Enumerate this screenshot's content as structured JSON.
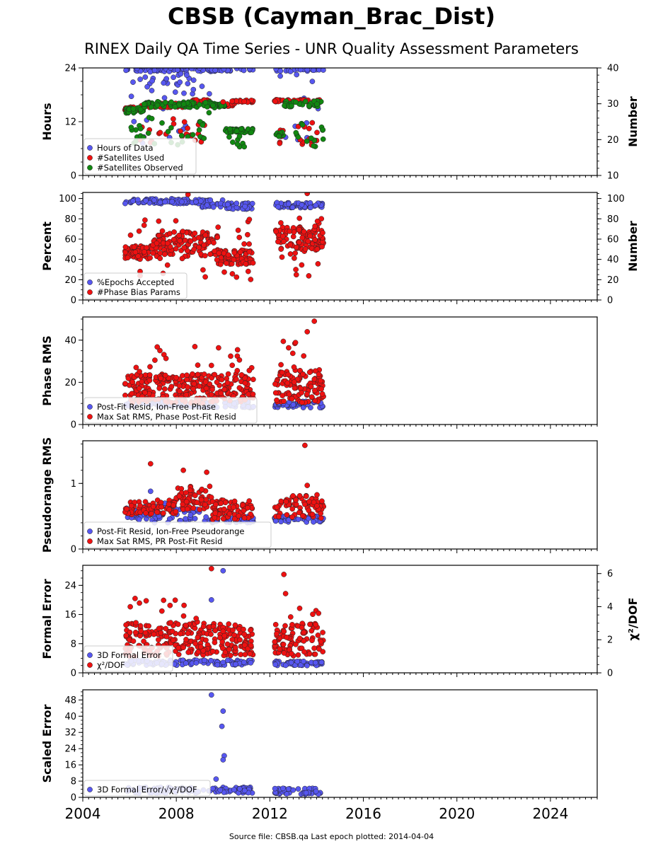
{
  "title": "CBSB (Cayman_Brac_Dist)",
  "subtitle": "RINEX Daily QA Time Series - UNR Quality Assessment Parameters",
  "footer": "Source file: CBSB.qa Last epoch plotted: 2014-04-04",
  "colors": {
    "blue": "#5757f0",
    "red": "#ee1111",
    "green": "#118811",
    "edge": "#222222"
  },
  "chart_data": [
    {
      "type": "scatter",
      "ylabel": "Hours",
      "y2label": "Number",
      "xlim": [
        2004,
        2026
      ],
      "ylim": [
        0,
        24
      ],
      "y2lim": [
        10,
        40
      ],
      "yticks": [
        0,
        12,
        24
      ],
      "y2ticks": [
        10,
        20,
        30,
        40
      ],
      "legend_position": "lower-left",
      "series": [
        {
          "name": "Hours of Data",
          "color": "blue",
          "axis": "left",
          "segments": [
            {
              "x0": 2005.8,
              "x1": 2011.3,
              "base": 23.6,
              "spread": 0.4,
              "n": 90
            },
            {
              "x0": 2006.0,
              "x1": 2009.5,
              "base": 21.5,
              "spread": 3.5,
              "n": 28
            },
            {
              "x0": 2006.0,
              "x1": 2009.0,
              "base": 15.0,
              "spread": 8.5,
              "n": 22
            },
            {
              "x0": 2012.2,
              "x1": 2014.3,
              "base": 23.6,
              "spread": 0.4,
              "n": 30
            },
            {
              "x0": 2012.4,
              "x1": 2014.2,
              "base": 16.0,
              "spread": 9.0,
              "n": 12
            }
          ]
        },
        {
          "name": "#Satellites Used",
          "color": "red",
          "axis": "right",
          "segments": [
            {
              "x0": 2005.8,
              "x1": 2006.5,
              "base": 28.6,
              "spread": 0.5,
              "n": 25
            },
            {
              "x0": 2006.5,
              "x1": 2008.6,
              "base": 29.6,
              "spread": 0.6,
              "n": 50
            },
            {
              "x0": 2008.6,
              "x1": 2009.5,
              "base": 30.7,
              "spread": 0.5,
              "n": 20
            },
            {
              "x0": 2009.5,
              "x1": 2010.5,
              "base": 29.6,
              "spread": 0.5,
              "n": 20
            },
            {
              "x0": 2010.3,
              "x1": 2011.3,
              "base": 30.7,
              "spread": 0.3,
              "n": 22
            },
            {
              "x0": 2006.2,
              "x1": 2009.3,
              "base": 22.5,
              "spread": 3.5,
              "n": 25
            },
            {
              "x0": 2012.2,
              "x1": 2014.3,
              "base": 30.8,
              "spread": 0.4,
              "n": 35
            },
            {
              "x0": 2012.4,
              "x1": 2014.3,
              "base": 22.0,
              "spread": 3.5,
              "n": 18
            }
          ]
        },
        {
          "name": "#Satellites Observed",
          "color": "green",
          "axis": "right",
          "segments": [
            {
              "x0": 2005.8,
              "x1": 2006.6,
              "base": 28.2,
              "spread": 0.8,
              "n": 30
            },
            {
              "x0": 2006.6,
              "x1": 2009.5,
              "base": 29.8,
              "spread": 0.8,
              "n": 70
            },
            {
              "x0": 2009.5,
              "x1": 2010.1,
              "base": 29.5,
              "spread": 0.6,
              "n": 20
            },
            {
              "x0": 2010.1,
              "x1": 2011.3,
              "base": 22.5,
              "spread": 0.6,
              "n": 45
            },
            {
              "x0": 2006.0,
              "x1": 2009.3,
              "base": 22.5,
              "spread": 4.0,
              "n": 30
            },
            {
              "x0": 2010.2,
              "x1": 2011.0,
              "base": 19.5,
              "spread": 1.5,
              "n": 8
            },
            {
              "x0": 2012.2,
              "x1": 2012.6,
              "base": 21.5,
              "spread": 0.6,
              "n": 10
            },
            {
              "x0": 2012.6,
              "x1": 2014.3,
              "base": 30.0,
              "spread": 0.8,
              "n": 40
            },
            {
              "x0": 2013.0,
              "x1": 2014.3,
              "base": 21.0,
              "spread": 3.5,
              "n": 15
            }
          ]
        }
      ]
    },
    {
      "type": "scatter",
      "ylabel": "Percent",
      "y2label": "Number",
      "xlim": [
        2004,
        2026
      ],
      "ylim": [
        0,
        106
      ],
      "y2lim": [
        0,
        106
      ],
      "yticks": [
        0,
        20,
        40,
        60,
        80,
        100
      ],
      "y2ticks": [
        0,
        20,
        40,
        60,
        80,
        100
      ],
      "legend_position": "lower-left",
      "series": [
        {
          "name": "%Epochs Accepted",
          "color": "blue",
          "axis": "left",
          "segments": [
            {
              "x0": 2005.8,
              "x1": 2009.0,
              "base": 97.5,
              "spread": 2.5,
              "n": 90
            },
            {
              "x0": 2009.0,
              "x1": 2010.0,
              "base": 95.5,
              "spread": 4.0,
              "n": 30
            },
            {
              "x0": 2010.0,
              "x1": 2011.3,
              "base": 92.5,
              "spread": 3.0,
              "n": 40
            },
            {
              "x0": 2012.2,
              "x1": 2014.3,
              "base": 93.5,
              "spread": 2.5,
              "n": 60
            }
          ]
        },
        {
          "name": "#Phase Bias Params",
          "color": "red",
          "axis": "right",
          "segments": [
            {
              "x0": 2005.8,
              "x1": 2007.0,
              "base": 47.0,
              "spread": 7.0,
              "n": 60
            },
            {
              "x0": 2007.0,
              "x1": 2009.8,
              "base": 55.0,
              "spread": 12.0,
              "n": 120
            },
            {
              "x0": 2009.8,
              "x1": 2011.3,
              "base": 42.0,
              "spread": 7.0,
              "n": 70
            },
            {
              "x0": 2006.0,
              "x1": 2011.3,
              "base": 50.0,
              "spread": 30.0,
              "n": 40
            },
            {
              "x0": 2012.2,
              "x1": 2014.3,
              "base": 60.0,
              "spread": 12.0,
              "n": 90
            },
            {
              "x0": 2012.4,
              "x1": 2014.3,
              "base": 50.0,
              "spread": 32.0,
              "n": 25
            }
          ]
        }
      ]
    },
    {
      "type": "scatter",
      "ylabel": "Phase RMS",
      "xlim": [
        2004,
        2026
      ],
      "ylim": [
        0,
        51
      ],
      "yticks": [
        0,
        20,
        40
      ],
      "legend_position": "lower-left",
      "series": [
        {
          "name": "Post-Fit Resid, Ion-Free Phase",
          "color": "blue",
          "axis": "left",
          "segments": [
            {
              "x0": 2005.8,
              "x1": 2011.3,
              "base": 9.5,
              "spread": 1.5,
              "n": 120
            },
            {
              "x0": 2012.2,
              "x1": 2014.3,
              "base": 9.5,
              "spread": 1.5,
              "n": 50
            }
          ]
        },
        {
          "name": "Max Sat RMS, Phase Post-Fit Resid",
          "color": "red",
          "axis": "left",
          "segments": [
            {
              "x0": 2005.8,
              "x1": 2011.3,
              "base": 17.0,
              "spread": 7.0,
              "n": 260
            },
            {
              "x0": 2006.0,
              "x1": 2011.3,
              "base": 25.0,
              "spread": 12.0,
              "n": 30
            },
            {
              "x0": 2012.2,
              "x1": 2014.3,
              "base": 18.0,
              "spread": 8.0,
              "n": 100
            },
            {
              "x0": 2012.4,
              "x1": 2014.3,
              "base": 30.0,
              "spread": 10.0,
              "n": 12
            }
          ]
        }
      ]
    },
    {
      "type": "scatter",
      "ylabel": "Pseudorange RMS",
      "xlim": [
        2004,
        2026
      ],
      "ylim": [
        0,
        1.65
      ],
      "yticks": [
        0,
        1
      ],
      "legend_position": "lower-left",
      "series": [
        {
          "name": "Post-Fit Resid, Ion-Free Pseudorange",
          "color": "blue",
          "axis": "left",
          "segments": [
            {
              "x0": 2005.8,
              "x1": 2006.8,
              "base": 0.55,
              "spread": 0.1,
              "n": 25
            },
            {
              "x0": 2006.8,
              "x1": 2009.5,
              "base": 0.55,
              "spread": 0.15,
              "n": 60
            },
            {
              "x0": 2009.5,
              "x1": 2011.3,
              "base": 0.45,
              "spread": 0.05,
              "n": 45
            },
            {
              "x0": 2012.2,
              "x1": 2014.3,
              "base": 0.46,
              "spread": 0.05,
              "n": 50
            }
          ]
        },
        {
          "name": "Max Sat RMS, PR Post-Fit Resid",
          "color": "red",
          "axis": "left",
          "segments": [
            {
              "x0": 2005.8,
              "x1": 2007.0,
              "base": 0.62,
              "spread": 0.1,
              "n": 40
            },
            {
              "x0": 2007.0,
              "x1": 2008.0,
              "base": 0.65,
              "spread": 0.12,
              "n": 35
            },
            {
              "x0": 2008.0,
              "x1": 2009.5,
              "base": 0.78,
              "spread": 0.18,
              "n": 55
            },
            {
              "x0": 2009.5,
              "x1": 2011.3,
              "base": 0.6,
              "spread": 0.15,
              "n": 70
            },
            {
              "x0": 2012.2,
              "x1": 2014.3,
              "base": 0.65,
              "spread": 0.18,
              "n": 70
            }
          ]
        }
      ]
    },
    {
      "type": "scatter",
      "ylabel": "Formal Error",
      "y2label": "χ²/DOF",
      "xlim": [
        2004,
        2026
      ],
      "ylim": [
        0,
        29.5
      ],
      "y2lim": [
        0,
        6.5
      ],
      "yticks": [
        0,
        8,
        16,
        24
      ],
      "y2ticks": [
        0,
        2,
        4,
        6
      ],
      "legend_position": "lower-left",
      "series": [
        {
          "name": "3D Formal Error",
          "color": "blue",
          "axis": "left",
          "segments": [
            {
              "x0": 2005.8,
              "x1": 2011.3,
              "base": 2.8,
              "spread": 0.7,
              "n": 120
            },
            {
              "x0": 2012.2,
              "x1": 2014.3,
              "base": 2.6,
              "spread": 0.6,
              "n": 50
            }
          ]
        },
        {
          "name": "χ²/DOF",
          "color": "red",
          "axis": "right",
          "segments": [
            {
              "x0": 2005.8,
              "x1": 2011.3,
              "base": 2.0,
              "spread": 1.0,
              "n": 250
            },
            {
              "x0": 2006.0,
              "x1": 2011.3,
              "base": 3.0,
              "spread": 1.5,
              "n": 25
            },
            {
              "x0": 2012.2,
              "x1": 2014.3,
              "base": 2.0,
              "spread": 1.0,
              "n": 90
            },
            {
              "x0": 2012.4,
              "x1": 2014.3,
              "base": 3.5,
              "spread": 1.5,
              "n": 8
            }
          ]
        }
      ]
    },
    {
      "type": "scatter",
      "ylabel": "Scaled Error",
      "xlim": [
        2004,
        2026
      ],
      "ylim": [
        0,
        53
      ],
      "yticks": [
        0,
        8,
        16,
        24,
        32,
        40,
        48
      ],
      "legend_position": "lower-left",
      "series": [
        {
          "name": "3D Formal Error/√χ²/DOF",
          "color": "blue",
          "axis": "left",
          "segments": [
            {
              "x0": 2005.8,
              "x1": 2011.3,
              "base": 3.5,
              "spread": 1.5,
              "n": 110
            },
            {
              "x0": 2012.2,
              "x1": 2014.3,
              "base": 3.0,
              "spread": 1.5,
              "n": 45
            }
          ]
        }
      ]
    }
  ],
  "xaxis": {
    "ticks": [
      "2004",
      "2008",
      "2012",
      "2016",
      "2020",
      "2024"
    ]
  },
  "outliers": [
    [
      {
        "s": 2,
        "x": 2009.4,
        "y": 27.5
      },
      {
        "s": 1,
        "x": 2010.0,
        "y": 30.5
      }
    ],
    [
      {
        "s": 1,
        "x": 2013.6,
        "y": 105
      },
      {
        "s": 1,
        "x": 2008.5,
        "y": 104
      }
    ],
    [
      {
        "s": 1,
        "x": 2013.9,
        "y": 49
      },
      {
        "s": 1,
        "x": 2013.6,
        "y": 44
      }
    ],
    [
      {
        "s": 1,
        "x": 2013.5,
        "y": 1.58
      },
      {
        "s": 1,
        "x": 2006.9,
        "y": 1.3
      },
      {
        "s": 1,
        "x": 2013.6,
        "y": 0.97
      },
      {
        "s": 0,
        "x": 2006.9,
        "y": 0.88
      },
      {
        "s": 1,
        "x": 2009.3,
        "y": 1.17
      },
      {
        "s": 1,
        "x": 2008.3,
        "y": 1.2
      }
    ],
    [
      {
        "s": 1,
        "x": 2009.5,
        "y": 6.3
      },
      {
        "s": 0,
        "x": 2010.0,
        "y": 28
      },
      {
        "s": 1,
        "x": 2012.6,
        "y": 5.95
      },
      {
        "s": 0,
        "x": 2009.5,
        "y": 20
      }
    ],
    [
      {
        "s": 0,
        "x": 2009.5,
        "y": 50.5
      },
      {
        "s": 0,
        "x": 2010.0,
        "y": 42.5
      },
      {
        "s": 0,
        "x": 2009.95,
        "y": 35
      },
      {
        "s": 0,
        "x": 2010.05,
        "y": 20.5
      },
      {
        "s": 0,
        "x": 2010.0,
        "y": 18.5
      },
      {
        "s": 0,
        "x": 2009.7,
        "y": 9
      }
    ]
  ]
}
